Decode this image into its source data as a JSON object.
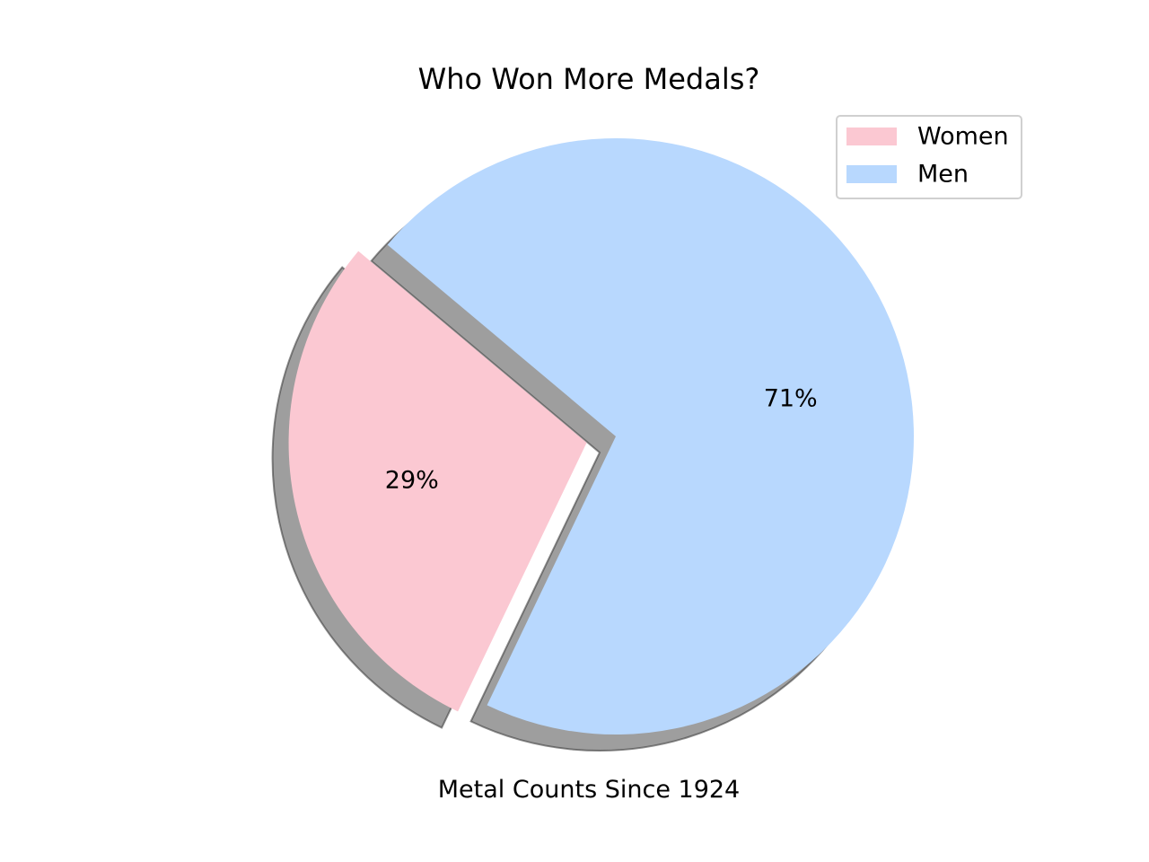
{
  "chart_data": {
    "type": "pie",
    "title": "Who Won More Medals?",
    "xlabel": "Metal Counts Since 1924",
    "labels": [
      "Women",
      "Men"
    ],
    "values": [
      29,
      71
    ],
    "percent_labels": [
      "29%",
      "71%"
    ],
    "colors": [
      "#fbc8d2",
      "#b8d8fe"
    ],
    "explode": [
      0.1,
      0
    ],
    "shadow": true,
    "start_angle_deg": 140,
    "legend_position": "top-right"
  }
}
